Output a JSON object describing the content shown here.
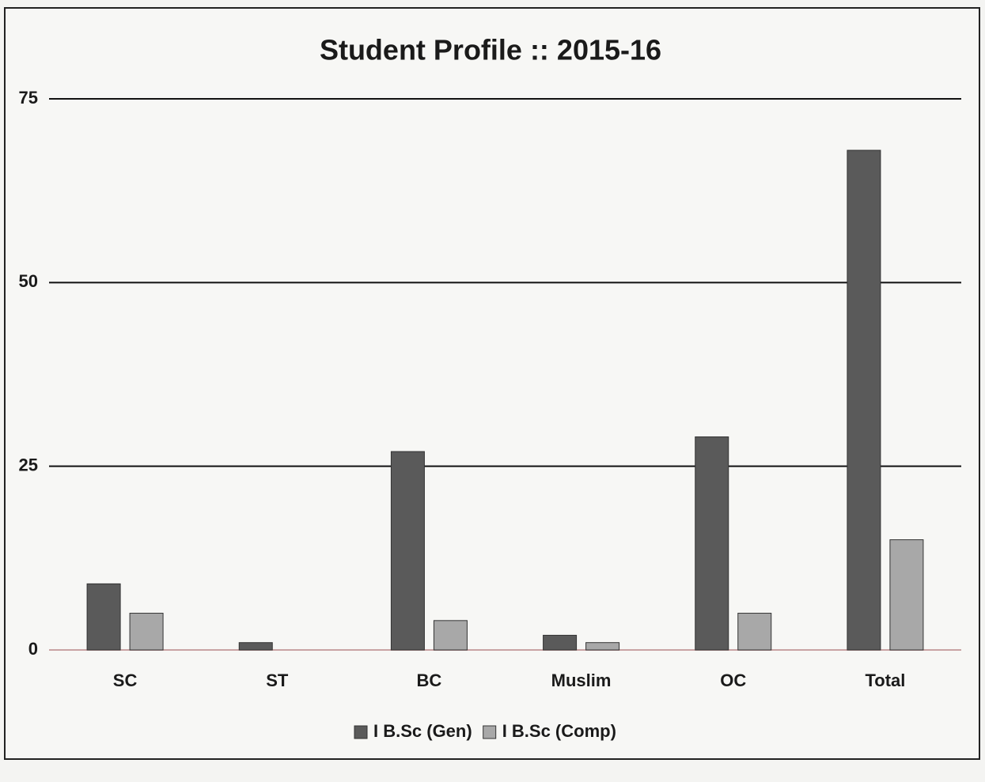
{
  "chart_data": {
    "type": "bar",
    "title": "Student Profile :: 2015-16",
    "categories": [
      "SC",
      "ST",
      "BC",
      "Muslim",
      "OC",
      "Total"
    ],
    "series": [
      {
        "name": "I B.Sc (Gen)",
        "color": "#5a5a5a",
        "values": [
          9,
          1,
          27,
          2,
          29,
          68
        ]
      },
      {
        "name": "I B.Sc (Comp)",
        "color": "#a8a8a8",
        "values": [
          5,
          0,
          4,
          1,
          5,
          15
        ]
      }
    ],
    "ylim": [
      0,
      75
    ],
    "yticks": [
      0,
      25,
      50,
      75
    ],
    "grid": true,
    "legend": "bottom"
  }
}
